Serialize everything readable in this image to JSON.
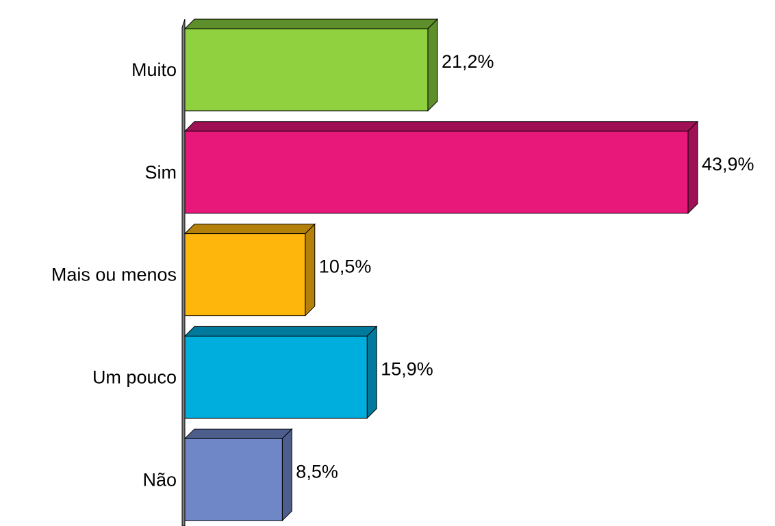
{
  "chart_data": {
    "type": "bar",
    "orientation": "horizontal",
    "categories": [
      "Muito",
      "Sim",
      "Mais ou menos",
      "Um pouco",
      "Não"
    ],
    "values": [
      21.2,
      43.9,
      10.5,
      15.9,
      8.5
    ],
    "value_labels": [
      "21,2%",
      "43,9%",
      "10,5%",
      "15,9%",
      "8,5%"
    ],
    "colors": [
      "#8fd13f",
      "#e8187a",
      "#ffb60c",
      "#00aede",
      "#6f86c7"
    ],
    "side_colors": [
      "#5e8f2a",
      "#a01055",
      "#b3800a",
      "#007a9c",
      "#4d5e8c"
    ]
  }
}
